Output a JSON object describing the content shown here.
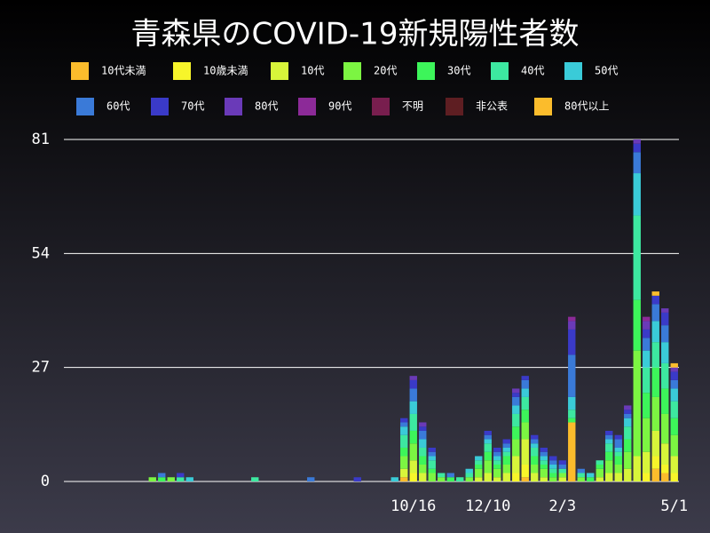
{
  "chart_data": {
    "type": "stacked_bar",
    "title": "青森県のCOVID-19新規陽性者数",
    "categories": [
      null,
      null,
      null,
      null,
      null,
      null,
      null,
      null,
      null,
      null,
      null,
      null,
      null,
      null,
      null,
      null,
      null,
      null,
      null,
      null,
      null,
      null,
      null,
      null,
      null,
      null,
      null,
      null,
      null,
      null,
      null,
      null,
      null,
      null,
      null,
      null,
      null,
      "10/16",
      null,
      null,
      null,
      null,
      null,
      null,
      null,
      "12/10",
      null,
      null,
      null,
      null,
      null,
      null,
      null,
      "2/3",
      null,
      null,
      null,
      null,
      null,
      null,
      null,
      null,
      null,
      null,
      null,
      "5/1"
    ],
    "ylim": [
      0,
      81
    ],
    "yticks": [
      0,
      27,
      54,
      81
    ],
    "grid": true,
    "series": [
      {
        "name": "10代未満",
        "color": "#fbbc2c",
        "values": [
          0,
          0,
          0,
          0,
          0,
          0,
          0,
          0,
          0,
          0,
          0,
          0,
          0,
          0,
          0,
          0,
          0,
          0,
          0,
          0,
          0,
          0,
          0,
          0,
          0,
          0,
          0,
          0,
          0,
          0,
          0,
          0,
          0,
          0,
          0,
          0,
          1,
          0,
          0,
          0,
          0,
          0,
          0,
          0,
          0,
          0,
          0,
          0,
          0,
          1,
          0,
          0,
          0,
          0,
          14,
          0,
          0,
          0,
          0,
          0,
          0,
          0,
          0,
          3,
          2,
          0
        ]
      },
      {
        "name": "10歳未満",
        "color": "#f7f52a",
        "values": [
          0,
          0,
          0,
          0,
          0,
          0,
          0,
          0,
          0,
          0,
          0,
          0,
          0,
          0,
          0,
          0,
          0,
          0,
          0,
          0,
          0,
          0,
          0,
          0,
          0,
          0,
          0,
          0,
          0,
          0,
          0,
          0,
          0,
          0,
          0,
          0,
          0,
          2,
          0,
          0,
          0,
          0,
          0,
          0,
          0,
          0,
          0,
          0,
          2,
          3,
          0,
          0,
          0,
          0,
          0,
          0,
          0,
          0,
          0,
          0,
          0,
          0,
          2,
          3,
          2,
          2
        ]
      },
      {
        "name": "10代",
        "color": "#d8f53a",
        "values": [
          0,
          0,
          0,
          0,
          0,
          0,
          0,
          0,
          0,
          0,
          0,
          0,
          0,
          0,
          0,
          0,
          0,
          0,
          0,
          0,
          0,
          0,
          0,
          0,
          0,
          0,
          0,
          0,
          0,
          0,
          0,
          0,
          0,
          0,
          0,
          0,
          2,
          3,
          2,
          0,
          0,
          0,
          0,
          0,
          1,
          2,
          1,
          2,
          4,
          6,
          2,
          1,
          0,
          1,
          0,
          0,
          0,
          1,
          2,
          2,
          3,
          6,
          5,
          6,
          5,
          4
        ]
      },
      {
        "name": "20代",
        "color": "#7cf542",
        "values": [
          0,
          0,
          0,
          0,
          0,
          0,
          0,
          0,
          0,
          1,
          0,
          1,
          0,
          0,
          0,
          0,
          0,
          0,
          0,
          0,
          0,
          0,
          0,
          0,
          0,
          0,
          0,
          0,
          0,
          0,
          0,
          0,
          0,
          0,
          0,
          0,
          3,
          4,
          2,
          2,
          1,
          0,
          0,
          1,
          2,
          3,
          2,
          2,
          4,
          4,
          2,
          2,
          1,
          1,
          0,
          1,
          0,
          2,
          3,
          2,
          4,
          25,
          8,
          8,
          7,
          5
        ]
      },
      {
        "name": "30代",
        "color": "#3df55a",
        "values": [
          0,
          0,
          0,
          0,
          0,
          0,
          0,
          0,
          0,
          0,
          1,
          0,
          0,
          0,
          0,
          0,
          0,
          0,
          0,
          0,
          0,
          0,
          0,
          0,
          0,
          0,
          0,
          0,
          0,
          0,
          0,
          0,
          0,
          0,
          0,
          0,
          2,
          3,
          2,
          1,
          0,
          1,
          0,
          0,
          1,
          2,
          1,
          2,
          3,
          3,
          2,
          1,
          1,
          0,
          1,
          0,
          1,
          1,
          2,
          2,
          3,
          12,
          6,
          7,
          6,
          4
        ]
      },
      {
        "name": "40代",
        "color": "#3de8a0",
        "values": [
          0,
          0,
          0,
          0,
          0,
          0,
          0,
          0,
          0,
          0,
          0,
          0,
          1,
          0,
          0,
          0,
          0,
          0,
          0,
          0,
          1,
          0,
          0,
          0,
          0,
          0,
          0,
          0,
          0,
          0,
          0,
          0,
          0,
          0,
          0,
          0,
          3,
          4,
          2,
          2,
          1,
          0,
          1,
          1,
          1,
          2,
          1,
          1,
          3,
          3,
          2,
          1,
          1,
          1,
          2,
          1,
          0,
          1,
          2,
          1,
          3,
          20,
          6,
          6,
          6,
          4
        ]
      },
      {
        "name": "50代",
        "color": "#3acbd8",
        "values": [
          0,
          0,
          0,
          0,
          0,
          0,
          0,
          0,
          0,
          0,
          0,
          0,
          0,
          1,
          0,
          0,
          0,
          0,
          0,
          0,
          0,
          0,
          0,
          0,
          0,
          0,
          0,
          0,
          0,
          0,
          0,
          0,
          0,
          0,
          0,
          1,
          2,
          3,
          2,
          1,
          0,
          0,
          0,
          1,
          1,
          1,
          1,
          1,
          2,
          2,
          1,
          1,
          1,
          0,
          3,
          0,
          1,
          0,
          1,
          1,
          2,
          10,
          4,
          5,
          5,
          3
        ]
      },
      {
        "name": "60代",
        "color": "#3a7ad8",
        "values": [
          0,
          0,
          0,
          0,
          0,
          0,
          0,
          0,
          0,
          0,
          1,
          0,
          0,
          0,
          0,
          0,
          0,
          0,
          0,
          0,
          0,
          0,
          0,
          0,
          0,
          0,
          1,
          0,
          0,
          0,
          0,
          0,
          0,
          0,
          0,
          0,
          1,
          3,
          2,
          1,
          0,
          1,
          0,
          0,
          0,
          1,
          1,
          1,
          2,
          2,
          1,
          1,
          1,
          1,
          10,
          1,
          0,
          0,
          1,
          2,
          1,
          5,
          3,
          4,
          4,
          2
        ]
      },
      {
        "name": "70代",
        "color": "#3a3ac8",
        "values": [
          0,
          0,
          0,
          0,
          0,
          0,
          0,
          0,
          0,
          0,
          0,
          0,
          1,
          0,
          0,
          0,
          0,
          0,
          0,
          0,
          0,
          0,
          0,
          0,
          0,
          0,
          0,
          0,
          0,
          0,
          0,
          1,
          0,
          0,
          0,
          0,
          1,
          2,
          1,
          1,
          0,
          0,
          0,
          0,
          0,
          1,
          1,
          1,
          1,
          1,
          1,
          1,
          1,
          1,
          6,
          0,
          0,
          0,
          1,
          1,
          1,
          2,
          2,
          2,
          3,
          2
        ]
      },
      {
        "name": "80代",
        "color": "#6a3ab8",
        "values": [
          0,
          0,
          0,
          0,
          0,
          0,
          0,
          0,
          0,
          0,
          0,
          0,
          0,
          0,
          0,
          0,
          0,
          0,
          0,
          0,
          0,
          0,
          0,
          0,
          0,
          0,
          0,
          0,
          0,
          0,
          0,
          0,
          0,
          0,
          0,
          0,
          0,
          1,
          1,
          0,
          0,
          0,
          0,
          0,
          0,
          0,
          0,
          0,
          1,
          0,
          0,
          0,
          0,
          0,
          2,
          0,
          0,
          0,
          0,
          0,
          1,
          1,
          2,
          0,
          1,
          1
        ]
      },
      {
        "name": "90代",
        "color": "#8c2a98",
        "values": [
          0,
          0,
          0,
          0,
          0,
          0,
          0,
          0,
          0,
          0,
          0,
          0,
          0,
          0,
          0,
          0,
          0,
          0,
          0,
          0,
          0,
          0,
          0,
          0,
          0,
          0,
          0,
          0,
          0,
          0,
          0,
          0,
          0,
          0,
          0,
          0,
          0,
          0,
          0,
          0,
          0,
          0,
          0,
          0,
          0,
          0,
          0,
          0,
          0,
          0,
          0,
          0,
          0,
          0,
          1,
          0,
          0,
          0,
          0,
          0,
          0,
          0,
          1,
          0,
          0,
          0
        ]
      },
      {
        "name": "不明",
        "color": "#781e4e",
        "values": [
          0,
          0,
          0,
          0,
          0,
          0,
          0,
          0,
          0,
          0,
          0,
          0,
          0,
          0,
          0,
          0,
          0,
          0,
          0,
          0,
          0,
          0,
          0,
          0,
          0,
          0,
          0,
          0,
          0,
          0,
          0,
          0,
          0,
          0,
          0,
          0,
          0,
          0,
          0,
          0,
          0,
          0,
          0,
          0,
          0,
          0,
          0,
          0,
          0,
          0,
          0,
          0,
          0,
          0,
          0,
          0,
          0,
          0,
          0,
          0,
          0,
          0,
          0,
          0,
          0,
          0
        ]
      },
      {
        "name": "非公表",
        "color": "#5e1e22",
        "values": [
          0,
          0,
          0,
          0,
          0,
          0,
          0,
          0,
          0,
          0,
          0,
          0,
          0,
          0,
          0,
          0,
          0,
          0,
          0,
          0,
          0,
          0,
          0,
          0,
          0,
          0,
          0,
          0,
          0,
          0,
          0,
          0,
          0,
          0,
          0,
          0,
          0,
          0,
          0,
          0,
          0,
          0,
          0,
          0,
          0,
          0,
          0,
          0,
          0,
          0,
          0,
          0,
          0,
          0,
          0,
          0,
          0,
          0,
          0,
          0,
          0,
          0,
          0,
          0,
          0,
          0
        ]
      },
      {
        "name": "80代以上",
        "color": "#fbbc2c",
        "values": [
          0,
          0,
          0,
          0,
          0,
          0,
          0,
          0,
          0,
          0,
          0,
          0,
          0,
          0,
          0,
          0,
          0,
          0,
          0,
          0,
          0,
          0,
          0,
          0,
          0,
          0,
          0,
          0,
          0,
          0,
          0,
          0,
          0,
          0,
          0,
          0,
          0,
          0,
          0,
          0,
          0,
          0,
          0,
          0,
          0,
          0,
          0,
          0,
          0,
          0,
          0,
          0,
          0,
          0,
          0,
          0,
          0,
          0,
          0,
          0,
          0,
          0,
          0,
          1,
          0,
          1
        ]
      }
    ]
  }
}
